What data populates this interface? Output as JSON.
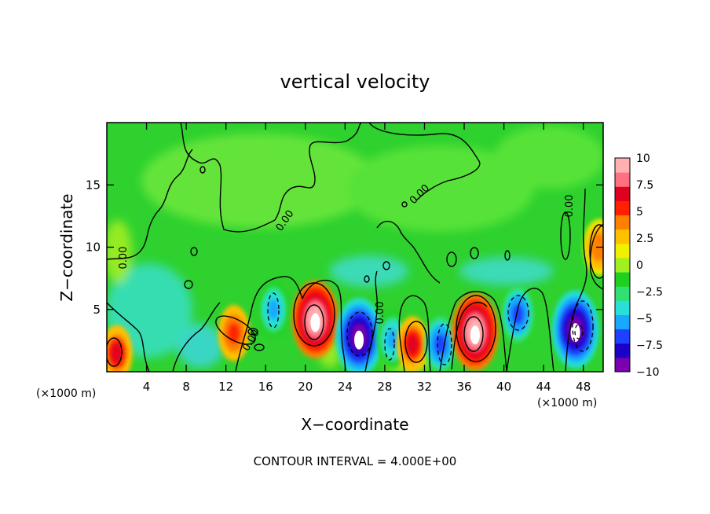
{
  "chart_data": {
    "type": "heatmap",
    "title": "vertical velocity",
    "xlabel": "X−coordinate",
    "ylabel": "Z−coordinate",
    "x_unit_left": "(×1000 m)",
    "x_unit_right": "(×1000 m)",
    "xlim": [
      0,
      50
    ],
    "ylim": [
      0,
      20
    ],
    "x_ticks": [
      4,
      8,
      12,
      16,
      20,
      24,
      28,
      32,
      36,
      40,
      44,
      48
    ],
    "y_ticks": [
      5,
      10,
      15
    ],
    "x_tick_labels": [
      "4",
      "8",
      "12",
      "16",
      "20",
      "24",
      "28",
      "32",
      "36",
      "40",
      "44",
      "48"
    ],
    "y_tick_labels": [
      "5",
      "10",
      "15"
    ],
    "footnote": "CONTOUR INTERVAL = 4.000E+00",
    "contour_interval": 4.0,
    "contour_labels": [
      "0.00",
      "0.00",
      "0.00",
      "0.00",
      "0.00",
      "0.00"
    ],
    "colorbar": {
      "min": -10,
      "max": 10,
      "tick_values": [
        10,
        7.5,
        5,
        2.5,
        0,
        -2.5,
        -5,
        -7.5,
        -10
      ],
      "tick_labels": [
        "10",
        "7.5",
        "5",
        "2.5",
        "0",
        "−2.5",
        "−5",
        "−7.5",
        "−10"
      ],
      "colors": [
        "#7a00b0",
        "#1c00c8",
        "#1e40ff",
        "#18a8ff",
        "#28e0d8",
        "#30e070",
        "#20d020",
        "#a0f020",
        "#f0f000",
        "#ffc000",
        "#ff8000",
        "#ff2000",
        "#e00020",
        "#ff7080",
        "#ffb0b0"
      ]
    },
    "features": [
      {
        "x": 1.0,
        "z": 1.5,
        "value": 6
      },
      {
        "x": 12.8,
        "z": 3.1,
        "value": 5
      },
      {
        "x": 16.8,
        "z": 5.0,
        "value": -5
      },
      {
        "x": 21.0,
        "z": 4.2,
        "value": 10
      },
      {
        "x": 25.4,
        "z": 2.8,
        "value": -9
      },
      {
        "x": 28.8,
        "z": 2.6,
        "value": -5
      },
      {
        "x": 30.8,
        "z": 2.2,
        "value": 6
      },
      {
        "x": 33.6,
        "z": 2.2,
        "value": -7
      },
      {
        "x": 37.1,
        "z": 3.2,
        "value": 10
      },
      {
        "x": 41.4,
        "z": 4.6,
        "value": -7
      },
      {
        "x": 47.2,
        "z": 3.4,
        "value": -9
      },
      {
        "x": 49.6,
        "z": 10.0,
        "value": 4
      }
    ]
  }
}
